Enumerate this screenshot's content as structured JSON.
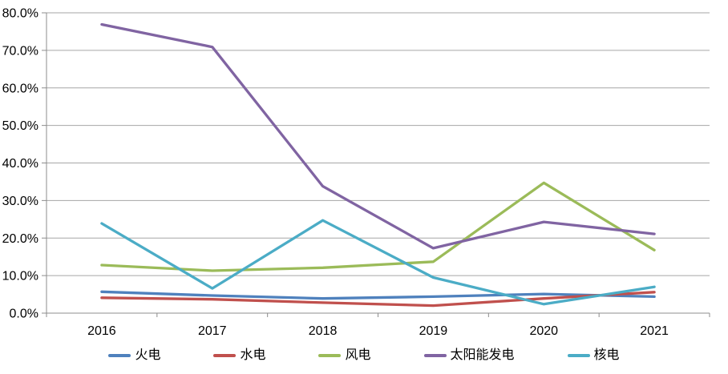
{
  "chart_data": {
    "type": "line",
    "title": "",
    "xlabel": "",
    "ylabel": "",
    "categories": [
      "2016",
      "2017",
      "2018",
      "2019",
      "2020",
      "2021"
    ],
    "series": [
      {
        "name": "火电",
        "color": "#4F81BD",
        "values": [
          5.7,
          4.7,
          3.9,
          4.4,
          5.1,
          4.4
        ]
      },
      {
        "name": "水电",
        "color": "#C0504D",
        "values": [
          4.1,
          3.7,
          2.8,
          2.0,
          3.9,
          5.6
        ]
      },
      {
        "name": "风电",
        "color": "#9BBB59",
        "values": [
          12.8,
          11.3,
          12.1,
          13.7,
          34.7,
          16.8
        ]
      },
      {
        "name": "太阳能发电",
        "color": "#8064A2",
        "values": [
          76.9,
          70.9,
          33.8,
          17.3,
          24.3,
          21.1
        ]
      },
      {
        "name": "核电",
        "color": "#4BACC6",
        "values": [
          23.9,
          6.6,
          24.7,
          9.5,
          2.4,
          7.0
        ]
      }
    ],
    "y_ticks": [
      "80.0%",
      "70.0%",
      "60.0%",
      "50.0%",
      "40.0%",
      "30.0%",
      "20.0%",
      "10.0%",
      "0.0%"
    ],
    "ylim": [
      0,
      80
    ],
    "y_step": 10,
    "grid": true,
    "legend_position": "bottom",
    "colors": {
      "background": "#FFFFFF",
      "gridline": "#A6A6A6",
      "axis": "#8C8C8C",
      "tick_label": "#000000"
    }
  }
}
